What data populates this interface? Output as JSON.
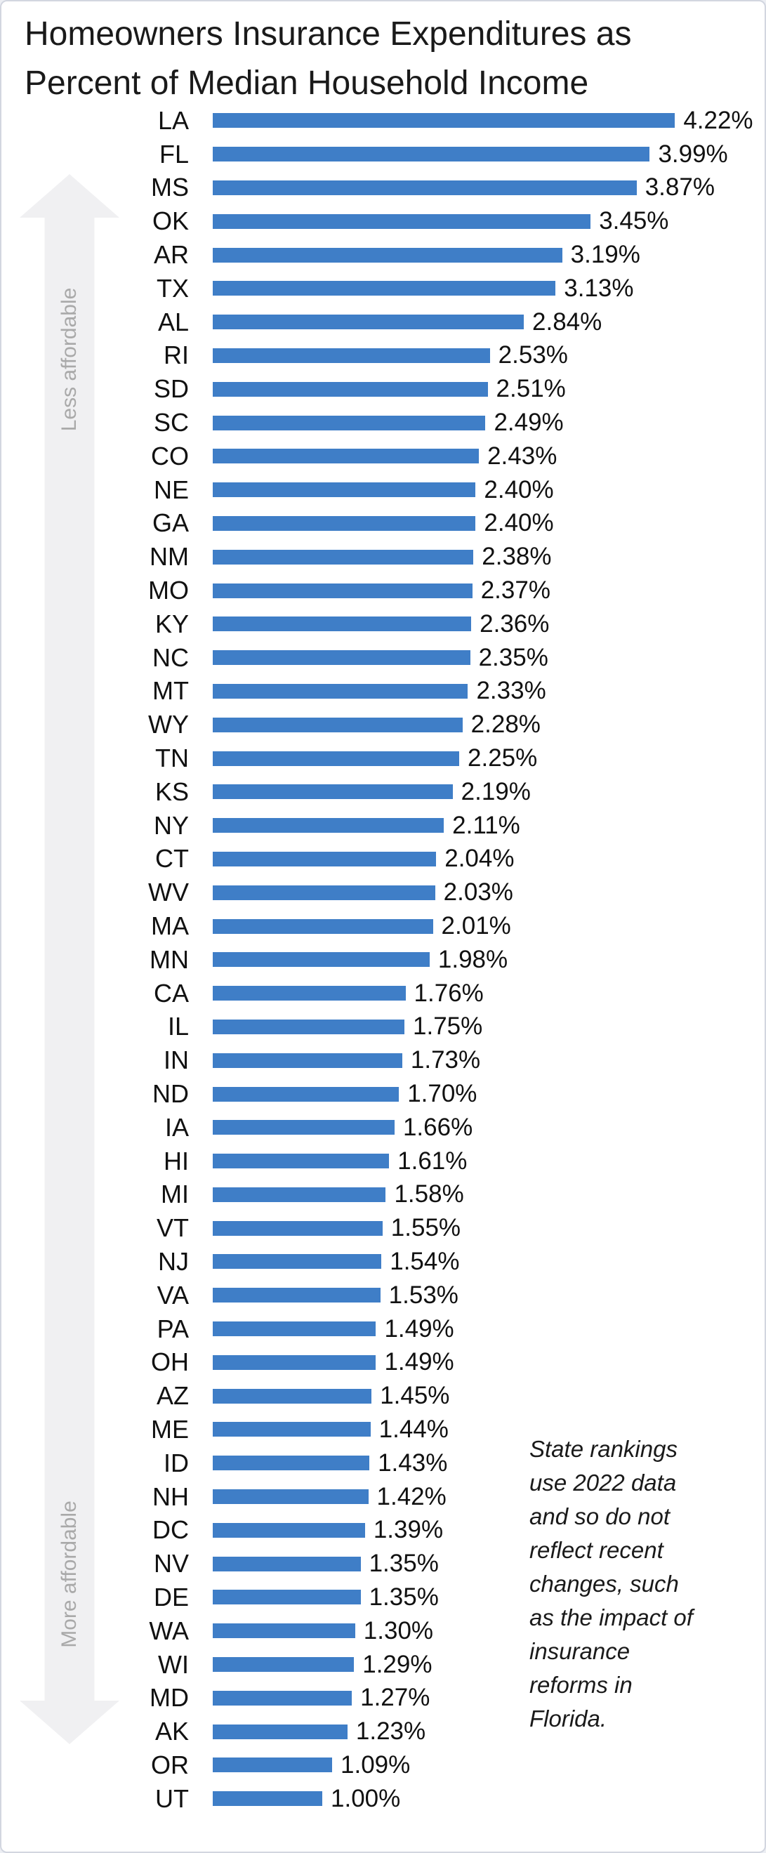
{
  "title_lines": [
    "Homeowners Insurance Expenditures as",
    "Percent of Median Household Income"
  ],
  "arrow": {
    "less_label": "Less affordable",
    "more_label": "More affordable"
  },
  "note": {
    "lines": [
      "State rankings",
      "use 2022 data",
      "and so do not",
      "reflect recent",
      "changes, such",
      "as the impact of",
      "insurance",
      "reforms in",
      "Florida."
    ]
  },
  "chart_data": {
    "type": "bar",
    "orientation": "horizontal",
    "title": "Homeowners Insurance Expenditures as Percent of Median Household Income",
    "categories": [
      "LA",
      "FL",
      "MS",
      "OK",
      "AR",
      "TX",
      "AL",
      "RI",
      "SD",
      "SC",
      "CO",
      "NE",
      "GA",
      "NM",
      "MO",
      "KY",
      "NC",
      "MT",
      "WY",
      "TN",
      "KS",
      "NY",
      "CT",
      "WV",
      "MA",
      "MN",
      "CA",
      "IL",
      "IN",
      "ND",
      "IA",
      "HI",
      "MI",
      "VT",
      "NJ",
      "VA",
      "PA",
      "OH",
      "AZ",
      "ME",
      "ID",
      "NH",
      "DC",
      "NV",
      "DE",
      "WA",
      "WI",
      "MD",
      "AK",
      "OR",
      "UT"
    ],
    "values": [
      4.22,
      3.99,
      3.87,
      3.45,
      3.19,
      3.13,
      2.84,
      2.53,
      2.51,
      2.49,
      2.43,
      2.4,
      2.4,
      2.38,
      2.37,
      2.36,
      2.35,
      2.33,
      2.28,
      2.25,
      2.19,
      2.11,
      2.04,
      2.03,
      2.01,
      1.98,
      1.76,
      1.75,
      1.73,
      1.7,
      1.66,
      1.61,
      1.58,
      1.55,
      1.54,
      1.53,
      1.49,
      1.49,
      1.45,
      1.44,
      1.43,
      1.42,
      1.39,
      1.35,
      1.35,
      1.3,
      1.29,
      1.27,
      1.23,
      1.09,
      1.0
    ],
    "value_suffix": "%",
    "decimals": 2,
    "bar_color": "#3F7EC7",
    "xlim": [
      0,
      4.5
    ],
    "grid": "off",
    "legend": "none",
    "left_axis_annotation_top": "Less affordable",
    "left_axis_annotation_bottom": "More affordable"
  }
}
